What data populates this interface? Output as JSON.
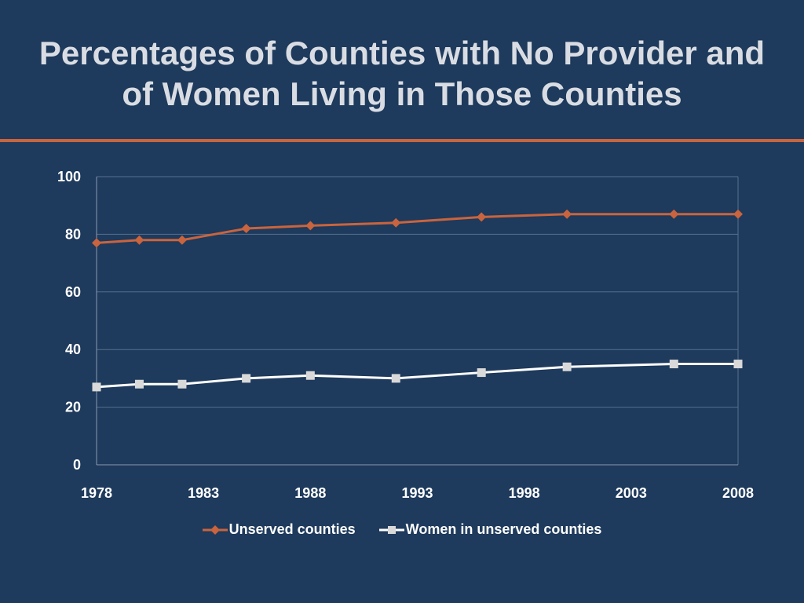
{
  "slide": {
    "title_line1": "Percentages of Counties with No Provider and",
    "title_line2": "of Women Living in Those Counties"
  },
  "colors": {
    "background": "#1e3a5c",
    "accent": "#c9643e",
    "series_unserved": "#c9643e",
    "series_women": "#ffffff",
    "marker_women": "#d9d9d9"
  },
  "chart_data": {
    "type": "line",
    "title": "",
    "xlabel": "",
    "ylabel": "",
    "xlim": [
      1978,
      2008
    ],
    "ylim": [
      0,
      100
    ],
    "x_ticks": [
      "1978",
      "1983",
      "1988",
      "1993",
      "1998",
      "2003",
      "2008"
    ],
    "y_ticks": [
      "0",
      "20",
      "40",
      "60",
      "80",
      "100"
    ],
    "grid": "horizontal",
    "legend_position": "bottom",
    "series": [
      {
        "name": "Unserved counties",
        "marker": "diamond",
        "x": [
          1978,
          1980,
          1982,
          1985,
          1988,
          1992,
          1996,
          2000,
          2005,
          2008
        ],
        "values": [
          77,
          78,
          78,
          82,
          83,
          84,
          86,
          87,
          87,
          87
        ]
      },
      {
        "name": "Women in unserved counties",
        "marker": "square",
        "x": [
          1978,
          1980,
          1982,
          1985,
          1988,
          1992,
          1996,
          2000,
          2005,
          2008
        ],
        "values": [
          27,
          28,
          28,
          30,
          31,
          30,
          32,
          34,
          35,
          35
        ]
      }
    ]
  }
}
